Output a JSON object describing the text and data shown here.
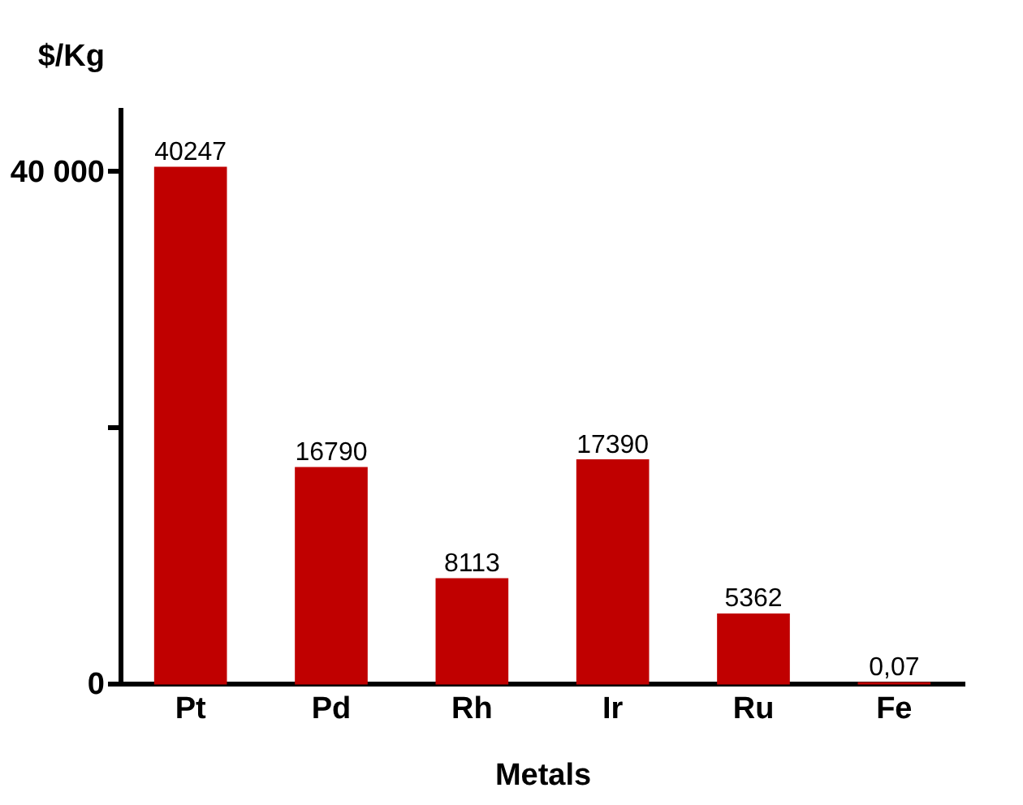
{
  "chart_data": {
    "type": "bar",
    "xlabel": "Metals",
    "ylabel": "$/Kg",
    "categories": [
      "Pt",
      "Pd",
      "Rh",
      "Ir",
      "Ru",
      "Fe"
    ],
    "values": [
      40247,
      16790,
      8113,
      17390,
      5362,
      0.07
    ],
    "value_labels": [
      "40247",
      "16790",
      "8113",
      "17390",
      "5362",
      "0,07"
    ],
    "colors": [
      "#c00000",
      "#c00000",
      "#c00000",
      "#c00000",
      "#c00000",
      "#c00000"
    ],
    "ylim": [
      0,
      45000
    ],
    "yticks": [
      0,
      {
        "value": 20000,
        "label": null
      },
      {
        "value": 40000,
        "label": "40 000"
      }
    ],
    "grid": false
  }
}
